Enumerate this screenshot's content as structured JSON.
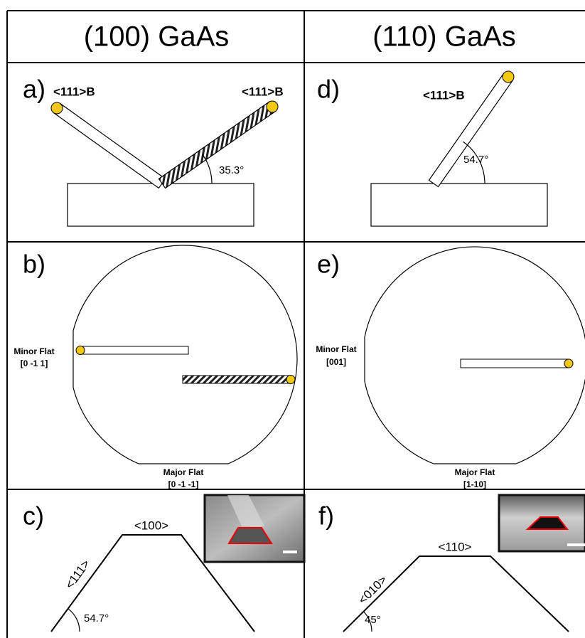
{
  "headers": [
    "(100) GaAs",
    "(110) GaAs"
  ],
  "panels": {
    "a": {
      "letter": "a)",
      "labels": [
        "<111>B",
        "<111>B"
      ],
      "angle": "35.3°"
    },
    "b": {
      "letter": "b)",
      "minor_flat": {
        "name": "Minor Flat",
        "direction": "[0 -1 1]"
      },
      "major_flat": {
        "name": "Major Flat",
        "direction": "[0 -1 -1]"
      }
    },
    "c": {
      "letter": "c)",
      "top_facet": "<100>",
      "side_facet": "<111>",
      "angle": "54.7°"
    },
    "d": {
      "letter": "d)",
      "label": "<111>B",
      "angle": "54.7°"
    },
    "e": {
      "letter": "e)",
      "minor_flat": {
        "name": "Minor Flat",
        "direction": "[001]"
      },
      "major_flat": {
        "name": "Major Flat",
        "direction": "[1-10]"
      }
    },
    "f": {
      "letter": "f)",
      "top_facet": "<110>",
      "side_facet": "<010>",
      "angle": "45°"
    }
  }
}
